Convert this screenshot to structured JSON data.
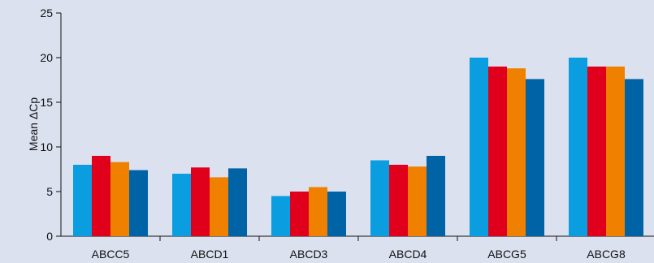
{
  "chart_data": {
    "type": "bar",
    "title": "",
    "xlabel": "",
    "ylabel": "Mean ΔCp",
    "ylim": [
      0,
      25
    ],
    "yticks": [
      "0",
      "5",
      "10",
      "15",
      "20",
      "25"
    ],
    "grid": false,
    "legend": "none",
    "categories": [
      "ABCC5",
      "ABCD1",
      "ABCD3",
      "ABCD4",
      "ABCG5",
      "ABCG8"
    ],
    "series": [
      {
        "color": "#0a9ee0",
        "values": [
          8.0,
          7.0,
          4.5,
          8.5,
          20.0,
          20.0
        ]
      },
      {
        "color": "#e0001b",
        "values": [
          9.0,
          7.7,
          5.0,
          8.0,
          19.0,
          19.0
        ]
      },
      {
        "color": "#f08000",
        "values": [
          8.3,
          6.6,
          5.5,
          7.8,
          18.8,
          19.0
        ]
      },
      {
        "color": "#0063a6",
        "values": [
          7.4,
          7.6,
          5.0,
          9.0,
          17.6,
          17.6
        ]
      }
    ]
  },
  "colors": {
    "background": "#dbe1ef",
    "axis": "#111111"
  }
}
